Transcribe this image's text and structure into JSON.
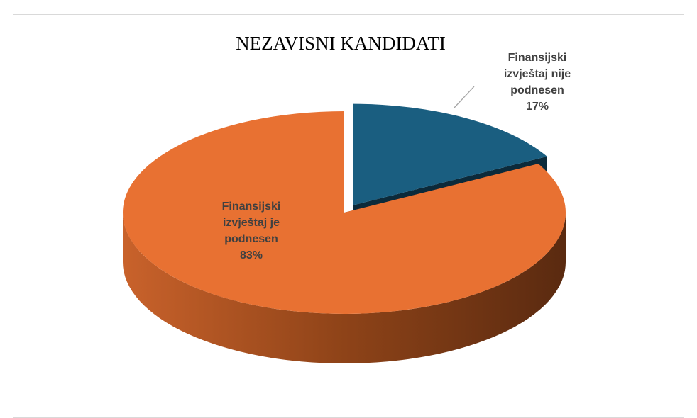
{
  "chart_data": {
    "type": "pie",
    "title": "NEZAVISNI KANDIDATI",
    "categories": [
      "Finansijski izvještaj nije podnesen",
      "Finansijski izvještaj je podnesen"
    ],
    "values": [
      17,
      83
    ],
    "value_labels": [
      "17%",
      "83%"
    ],
    "colors": [
      "#1a5e80",
      "#e87132"
    ],
    "exploded": [
      true,
      false
    ]
  }
}
